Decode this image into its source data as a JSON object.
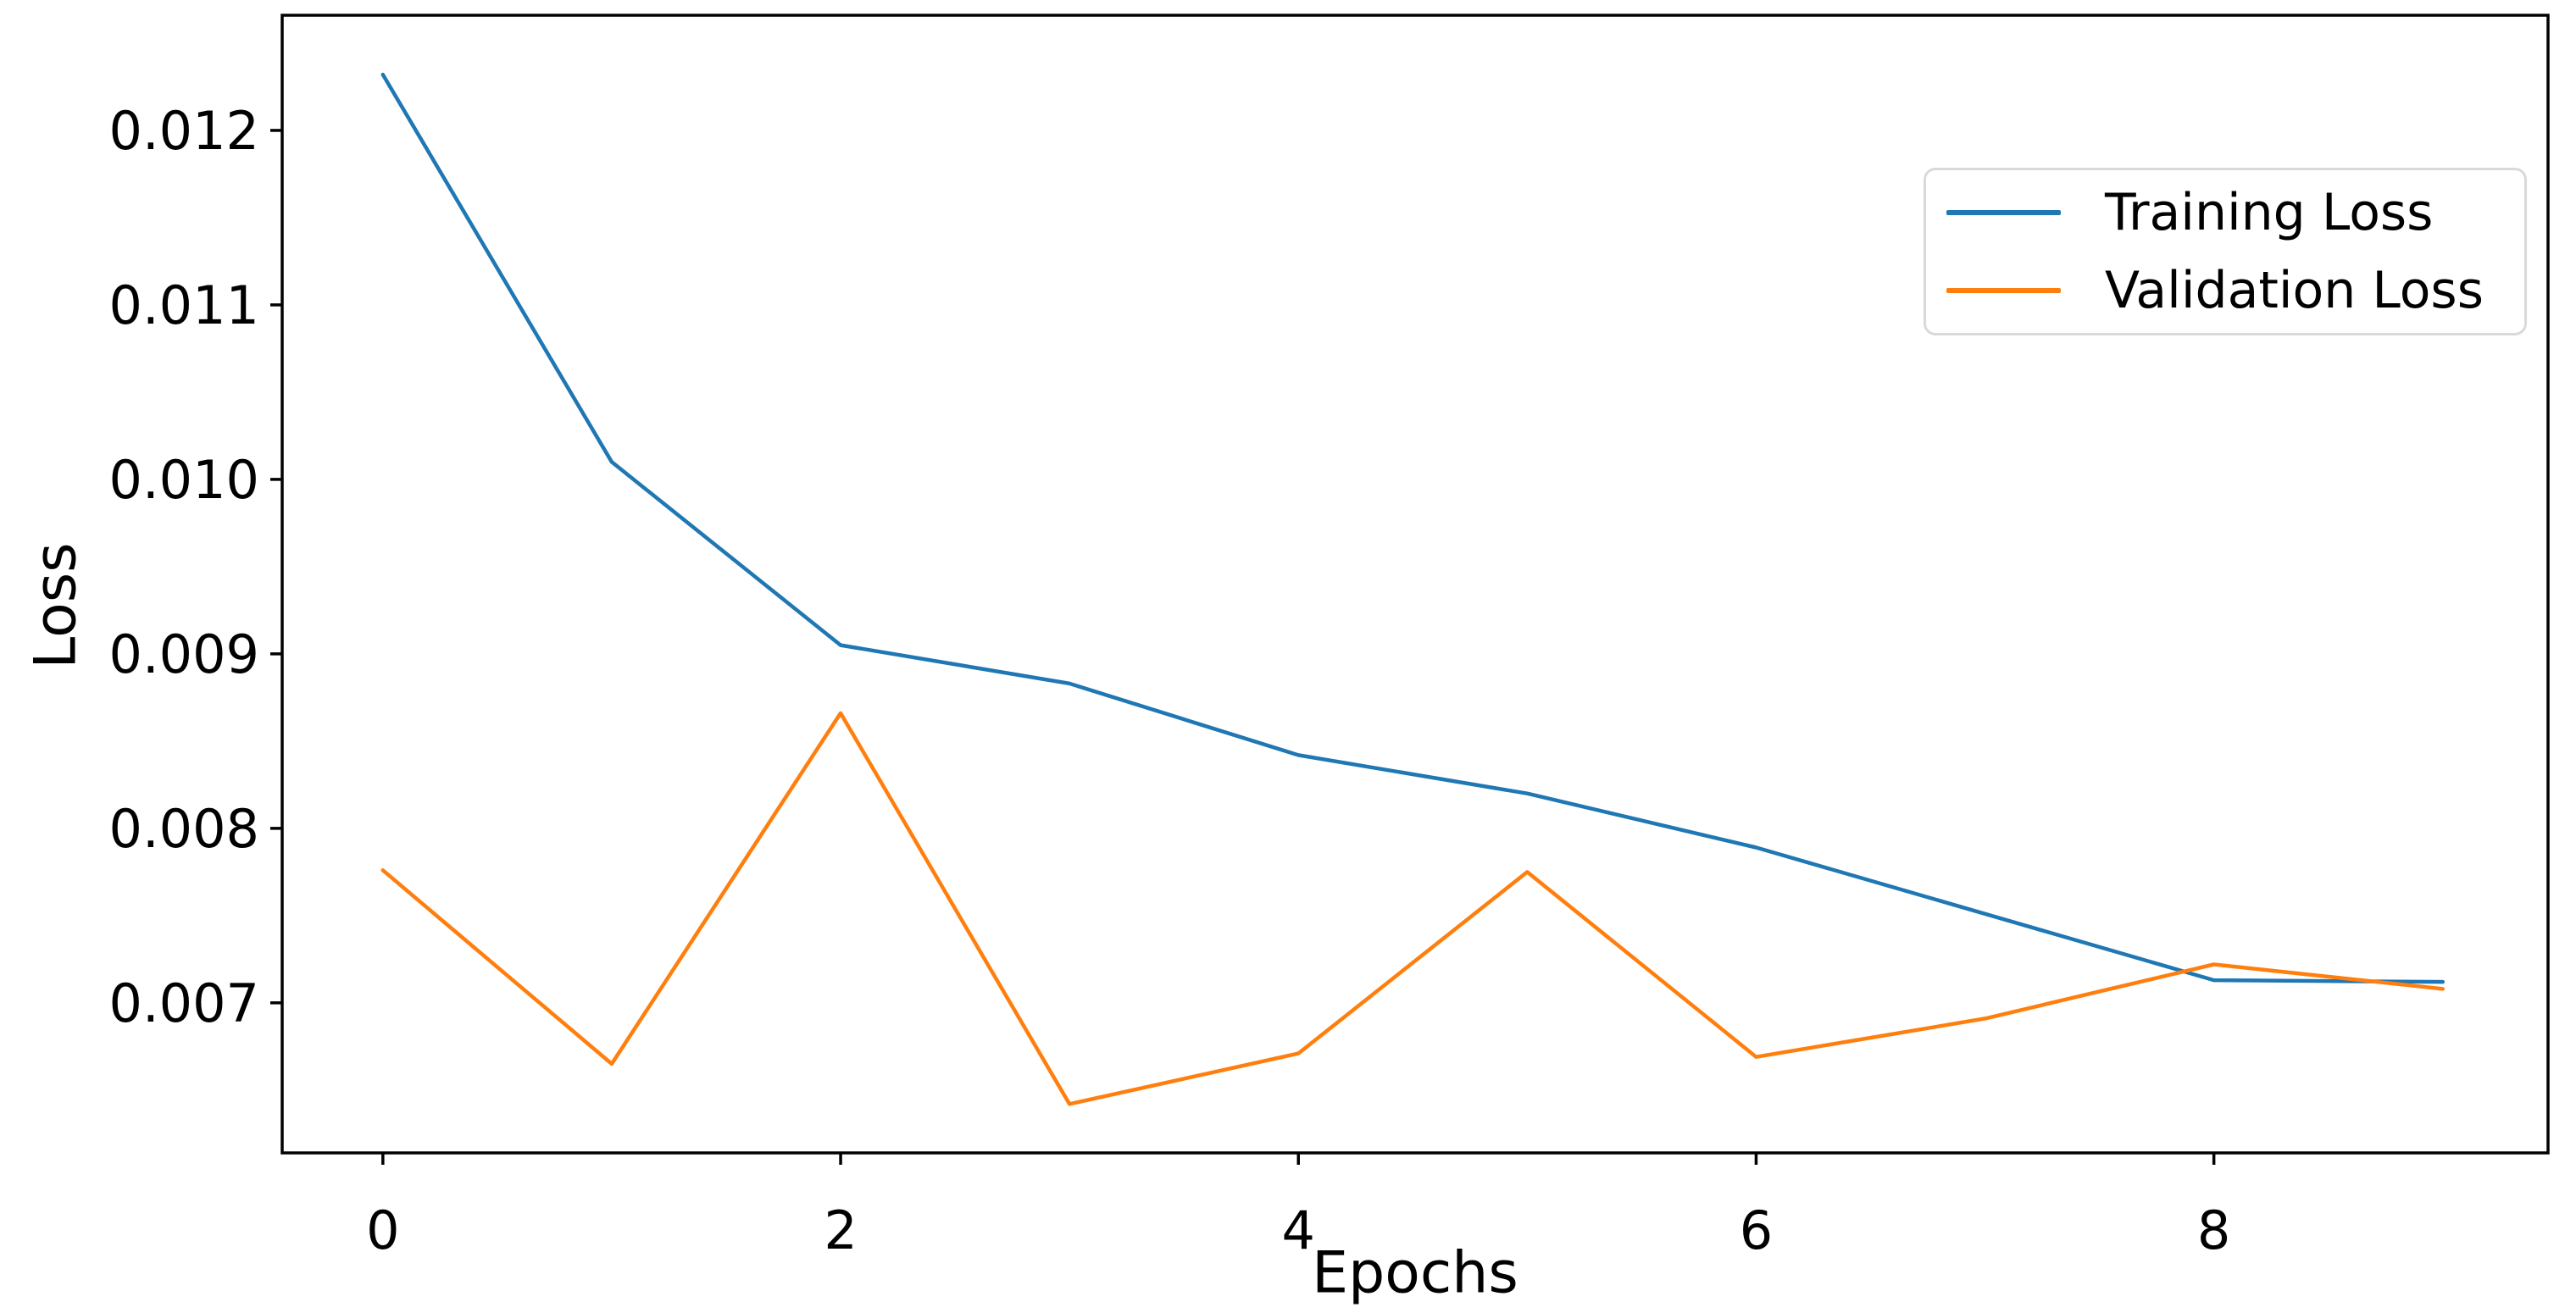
{
  "chart_data": {
    "type": "line",
    "x": [
      0,
      1,
      2,
      3,
      4,
      5,
      6,
      7,
      8,
      9
    ],
    "series": [
      {
        "name": "Training Loss",
        "color": "#1f77b4",
        "values": [
          0.01232,
          0.0101,
          0.00905,
          0.00883,
          0.00842,
          0.0082,
          0.00789,
          0.00751,
          0.00713,
          0.00712
        ]
      },
      {
        "name": "Validation Loss",
        "color": "#ff7f0e",
        "values": [
          0.00776,
          0.00665,
          0.00866,
          0.00642,
          0.00671,
          0.00775,
          0.00669,
          0.00691,
          0.00722,
          0.00708
        ]
      }
    ],
    "title": "",
    "xlabel": "Epochs",
    "ylabel": "Loss",
    "x_ticks": [
      0,
      2,
      4,
      6,
      8
    ],
    "x_tick_labels": [
      "0",
      "2",
      "4",
      "6",
      "8"
    ],
    "y_ticks": [
      0.007,
      0.008,
      0.009,
      0.01,
      0.011,
      0.012
    ],
    "y_tick_labels": [
      "0.007",
      "0.008",
      "0.009",
      "0.010",
      "0.011",
      "0.012"
    ],
    "xlim": [
      -0.44,
      9.46
    ],
    "ylim": [
      0.00614,
      0.01266
    ],
    "grid": false,
    "legend_position": "upper right",
    "axis_color": "#000000",
    "text_color": "#000000",
    "background_color": "#ffffff"
  }
}
